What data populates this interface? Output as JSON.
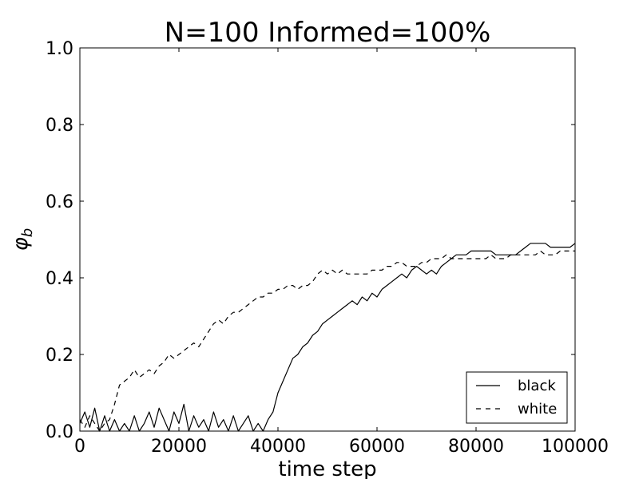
{
  "chart_data": {
    "type": "line",
    "title": "N=100   Informed=100%",
    "xlabel": "time step",
    "ylabel": "φ",
    "ylabel_subscript": "b",
    "xlim": [
      0,
      100000
    ],
    "ylim": [
      0,
      1.0
    ],
    "xticks": [
      0,
      20000,
      40000,
      60000,
      80000,
      100000
    ],
    "xtick_labels": [
      "0",
      "20000",
      "40000",
      "60000",
      "80000",
      "100000"
    ],
    "yticks": [
      0.0,
      0.2,
      0.4,
      0.6,
      0.8,
      1.0
    ],
    "ytick_labels": [
      "0.0",
      "0.2",
      "0.4",
      "0.6",
      "0.8",
      "1.0"
    ],
    "grid": false,
    "legend_position": "bottom-right",
    "series": [
      {
        "name": "black",
        "style": "solid",
        "color": "#000000",
        "points": [
          [
            0,
            0.02
          ],
          [
            1000,
            0.05
          ],
          [
            2000,
            0.01
          ],
          [
            3000,
            0.06
          ],
          [
            4000,
            0.0
          ],
          [
            5000,
            0.04
          ],
          [
            6000,
            0.0
          ],
          [
            7000,
            0.03
          ],
          [
            8000,
            0.0
          ],
          [
            9000,
            0.02
          ],
          [
            10000,
            0.0
          ],
          [
            11000,
            0.04
          ],
          [
            12000,
            0.0
          ],
          [
            13000,
            0.02
          ],
          [
            14000,
            0.05
          ],
          [
            15000,
            0.01
          ],
          [
            16000,
            0.06
          ],
          [
            17000,
            0.03
          ],
          [
            18000,
            0.0
          ],
          [
            19000,
            0.05
          ],
          [
            20000,
            0.02
          ],
          [
            21000,
            0.07
          ],
          [
            22000,
            0.0
          ],
          [
            23000,
            0.04
          ],
          [
            24000,
            0.01
          ],
          [
            25000,
            0.03
          ],
          [
            26000,
            0.0
          ],
          [
            27000,
            0.05
          ],
          [
            28000,
            0.01
          ],
          [
            29000,
            0.03
          ],
          [
            30000,
            0.0
          ],
          [
            31000,
            0.04
          ],
          [
            32000,
            0.0
          ],
          [
            33000,
            0.02
          ],
          [
            34000,
            0.04
          ],
          [
            35000,
            0.0
          ],
          [
            36000,
            0.02
          ],
          [
            37000,
            0.0
          ],
          [
            38000,
            0.03
          ],
          [
            39000,
            0.05
          ],
          [
            40000,
            0.1
          ],
          [
            41000,
            0.13
          ],
          [
            42000,
            0.16
          ],
          [
            43000,
            0.19
          ],
          [
            44000,
            0.2
          ],
          [
            45000,
            0.22
          ],
          [
            46000,
            0.23
          ],
          [
            47000,
            0.25
          ],
          [
            48000,
            0.26
          ],
          [
            49000,
            0.28
          ],
          [
            50000,
            0.29
          ],
          [
            51000,
            0.3
          ],
          [
            52000,
            0.31
          ],
          [
            53000,
            0.32
          ],
          [
            54000,
            0.33
          ],
          [
            55000,
            0.34
          ],
          [
            56000,
            0.33
          ],
          [
            57000,
            0.35
          ],
          [
            58000,
            0.34
          ],
          [
            59000,
            0.36
          ],
          [
            60000,
            0.35
          ],
          [
            61000,
            0.37
          ],
          [
            62000,
            0.38
          ],
          [
            63000,
            0.39
          ],
          [
            64000,
            0.4
          ],
          [
            65000,
            0.41
          ],
          [
            66000,
            0.4
          ],
          [
            67000,
            0.42
          ],
          [
            68000,
            0.43
          ],
          [
            69000,
            0.42
          ],
          [
            70000,
            0.41
          ],
          [
            71000,
            0.42
          ],
          [
            72000,
            0.41
          ],
          [
            73000,
            0.43
          ],
          [
            74000,
            0.44
          ],
          [
            75000,
            0.45
          ],
          [
            76000,
            0.46
          ],
          [
            77000,
            0.46
          ],
          [
            78000,
            0.46
          ],
          [
            79000,
            0.47
          ],
          [
            80000,
            0.47
          ],
          [
            81000,
            0.47
          ],
          [
            82000,
            0.47
          ],
          [
            83000,
            0.47
          ],
          [
            84000,
            0.46
          ],
          [
            85000,
            0.46
          ],
          [
            86000,
            0.46
          ],
          [
            87000,
            0.46
          ],
          [
            88000,
            0.46
          ],
          [
            89000,
            0.47
          ],
          [
            90000,
            0.48
          ],
          [
            91000,
            0.49
          ],
          [
            92000,
            0.49
          ],
          [
            93000,
            0.49
          ],
          [
            94000,
            0.49
          ],
          [
            95000,
            0.48
          ],
          [
            96000,
            0.48
          ],
          [
            97000,
            0.48
          ],
          [
            98000,
            0.48
          ],
          [
            99000,
            0.48
          ],
          [
            100000,
            0.49
          ]
        ]
      },
      {
        "name": "white",
        "style": "dashed",
        "color": "#000000",
        "points": [
          [
            0,
            0.03
          ],
          [
            1000,
            0.01
          ],
          [
            2000,
            0.04
          ],
          [
            3000,
            0.02
          ],
          [
            4000,
            0.0
          ],
          [
            5000,
            0.02
          ],
          [
            6000,
            0.03
          ],
          [
            7000,
            0.07
          ],
          [
            8000,
            0.12
          ],
          [
            9000,
            0.13
          ],
          [
            10000,
            0.14
          ],
          [
            11000,
            0.16
          ],
          [
            12000,
            0.14
          ],
          [
            13000,
            0.15
          ],
          [
            14000,
            0.16
          ],
          [
            15000,
            0.15
          ],
          [
            16000,
            0.17
          ],
          [
            17000,
            0.18
          ],
          [
            18000,
            0.2
          ],
          [
            19000,
            0.19
          ],
          [
            20000,
            0.2
          ],
          [
            21000,
            0.21
          ],
          [
            22000,
            0.22
          ],
          [
            23000,
            0.23
          ],
          [
            24000,
            0.22
          ],
          [
            25000,
            0.24
          ],
          [
            26000,
            0.26
          ],
          [
            27000,
            0.28
          ],
          [
            28000,
            0.29
          ],
          [
            29000,
            0.28
          ],
          [
            30000,
            0.3
          ],
          [
            31000,
            0.31
          ],
          [
            32000,
            0.31
          ],
          [
            33000,
            0.32
          ],
          [
            34000,
            0.33
          ],
          [
            35000,
            0.34
          ],
          [
            36000,
            0.35
          ],
          [
            37000,
            0.35
          ],
          [
            38000,
            0.36
          ],
          [
            39000,
            0.36
          ],
          [
            40000,
            0.37
          ],
          [
            41000,
            0.37
          ],
          [
            42000,
            0.38
          ],
          [
            43000,
            0.38
          ],
          [
            44000,
            0.37
          ],
          [
            45000,
            0.38
          ],
          [
            46000,
            0.38
          ],
          [
            47000,
            0.39
          ],
          [
            48000,
            0.41
          ],
          [
            49000,
            0.42
          ],
          [
            50000,
            0.41
          ],
          [
            51000,
            0.42
          ],
          [
            52000,
            0.41
          ],
          [
            53000,
            0.42
          ],
          [
            54000,
            0.41
          ],
          [
            55000,
            0.41
          ],
          [
            56000,
            0.41
          ],
          [
            57000,
            0.41
          ],
          [
            58000,
            0.41
          ],
          [
            59000,
            0.42
          ],
          [
            60000,
            0.42
          ],
          [
            61000,
            0.42
          ],
          [
            62000,
            0.43
          ],
          [
            63000,
            0.43
          ],
          [
            64000,
            0.44
          ],
          [
            65000,
            0.44
          ],
          [
            66000,
            0.43
          ],
          [
            67000,
            0.43
          ],
          [
            68000,
            0.43
          ],
          [
            69000,
            0.44
          ],
          [
            70000,
            0.44
          ],
          [
            71000,
            0.45
          ],
          [
            72000,
            0.45
          ],
          [
            73000,
            0.45
          ],
          [
            74000,
            0.46
          ],
          [
            75000,
            0.45
          ],
          [
            76000,
            0.45
          ],
          [
            77000,
            0.45
          ],
          [
            78000,
            0.45
          ],
          [
            79000,
            0.45
          ],
          [
            80000,
            0.45
          ],
          [
            81000,
            0.45
          ],
          [
            82000,
            0.45
          ],
          [
            83000,
            0.46
          ],
          [
            84000,
            0.45
          ],
          [
            85000,
            0.45
          ],
          [
            86000,
            0.45
          ],
          [
            87000,
            0.46
          ],
          [
            88000,
            0.46
          ],
          [
            89000,
            0.46
          ],
          [
            90000,
            0.46
          ],
          [
            91000,
            0.46
          ],
          [
            92000,
            0.46
          ],
          [
            93000,
            0.47
          ],
          [
            94000,
            0.46
          ],
          [
            95000,
            0.46
          ],
          [
            96000,
            0.46
          ],
          [
            97000,
            0.47
          ],
          [
            98000,
            0.47
          ],
          [
            99000,
            0.47
          ],
          [
            100000,
            0.47
          ]
        ]
      }
    ]
  }
}
